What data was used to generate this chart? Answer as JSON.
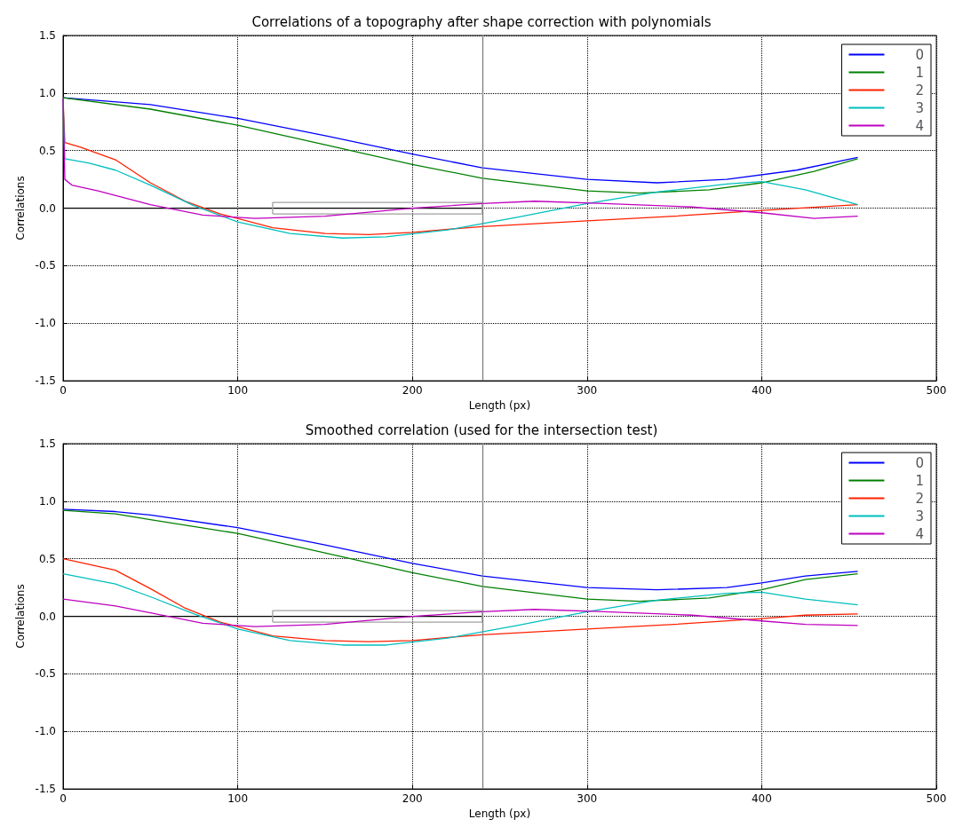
{
  "chart_data": [
    {
      "type": "line",
      "title": "Correlations of a topography after shape correction with polynomials",
      "xlabel": "Length (px)",
      "ylabel": "Correlations",
      "xlim": [
        0,
        500
      ],
      "xticks": [
        0,
        100,
        200,
        300,
        400,
        500
      ],
      "ylim": [
        -1.5,
        1.5
      ],
      "yticks": [
        {
          "value": -1.5,
          "label": "-1.5"
        },
        {
          "value": -1,
          "label": "-1.0"
        },
        {
          "value": -0.5,
          "label": "-0.5"
        },
        {
          "value": 0,
          "label": "0.0"
        },
        {
          "value": 0.5,
          "label": "0.5"
        },
        {
          "value": 1,
          "label": "1.0"
        },
        {
          "value": 1.5,
          "label": "1.5"
        }
      ],
      "grid": true,
      "legend": "top right",
      "marker": "none",
      "line_style": "solid",
      "ref_lines": [
        {
          "axis": "x",
          "value": 240,
          "color": "#808080"
        }
      ],
      "series": [
        {
          "name": "0",
          "color": "#0000ff",
          "x": [
            0,
            50,
            100,
            150,
            200,
            240,
            300,
            340,
            380,
            420,
            455
          ],
          "values": [
            0.96,
            0.9,
            0.78,
            0.63,
            0.47,
            0.35,
            0.25,
            0.22,
            0.25,
            0.33,
            0.44
          ]
        },
        {
          "name": "1",
          "color": "#008000",
          "x": [
            0,
            50,
            100,
            150,
            200,
            240,
            300,
            330,
            370,
            400,
            430,
            455
          ],
          "values": [
            0.96,
            0.86,
            0.72,
            0.55,
            0.38,
            0.26,
            0.15,
            0.13,
            0.16,
            0.22,
            0.32,
            0.43
          ]
        },
        {
          "name": "2",
          "color": "#ff2000",
          "x": [
            0,
            1,
            10,
            30,
            50,
            70,
            90,
            120,
            150,
            175,
            200,
            240,
            300,
            350,
            400,
            455
          ],
          "values": [
            0.95,
            0.57,
            0.53,
            0.42,
            0.22,
            0.06,
            -0.05,
            -0.17,
            -0.22,
            -0.23,
            -0.21,
            -0.16,
            -0.11,
            -0.07,
            -0.02,
            0.03
          ]
        },
        {
          "name": "3",
          "color": "#00bfbf",
          "x": [
            0,
            1,
            15,
            30,
            50,
            75,
            100,
            130,
            160,
            185,
            220,
            260,
            300,
            340,
            380,
            400,
            425,
            455
          ],
          "values": [
            0.95,
            0.43,
            0.39,
            0.33,
            0.2,
            0.02,
            -0.12,
            -0.22,
            -0.26,
            -0.25,
            -0.19,
            -0.08,
            0.04,
            0.14,
            0.21,
            0.23,
            0.16,
            0.03
          ]
        },
        {
          "name": "4",
          "color": "#bf00bf",
          "x": [
            0,
            1,
            5,
            20,
            50,
            80,
            110,
            150,
            200,
            240,
            270,
            310,
            360,
            400,
            430,
            455
          ],
          "values": [
            0.95,
            0.25,
            0.2,
            0.15,
            0.03,
            -0.06,
            -0.09,
            -0.07,
            0,
            0.04,
            0.06,
            0.04,
            0.01,
            -0.04,
            -0.09,
            -0.07
          ]
        },
        {
          "color": "#000000",
          "x": [
            0,
            240
          ],
          "values": [
            0,
            0
          ]
        },
        {
          "color": "#a0a0a0",
          "x": [
            120,
            240
          ],
          "values": [
            0.05,
            0.05
          ]
        },
        {
          "color": "#a0a0a0",
          "x": [
            120,
            240
          ],
          "values": [
            -0.05,
            -0.05
          ]
        },
        {
          "color": "#a0a0a0",
          "x": [
            120,
            120
          ],
          "values": [
            -0.05,
            0.05
          ]
        },
        {
          "color": "#a0a0a0",
          "x": [
            240,
            240
          ],
          "values": [
            -0.05,
            0.05
          ]
        }
      ]
    },
    {
      "type": "line",
      "title": "Smoothed correlation (used for the intersection test)",
      "xlabel": "Length (px)",
      "ylabel": "Correlations",
      "xlim": [
        0,
        500
      ],
      "xticks": [
        0,
        100,
        200,
        300,
        400,
        500
      ],
      "ylim": [
        -1.5,
        1.5
      ],
      "yticks": [
        {
          "value": -1.5,
          "label": "-1.5"
        },
        {
          "value": -1,
          "label": "-1.0"
        },
        {
          "value": -0.5,
          "label": "-0.5"
        },
        {
          "value": 0,
          "label": "0.0"
        },
        {
          "value": 0.5,
          "label": "0.5"
        },
        {
          "value": 1,
          "label": "1.0"
        },
        {
          "value": 1.5,
          "label": "1.5"
        }
      ],
      "grid": true,
      "legend": "top right",
      "marker": "none",
      "line_style": "solid",
      "ref_lines": [
        {
          "axis": "x",
          "value": 240,
          "color": "#808080"
        }
      ],
      "series": [
        {
          "name": "0",
          "color": "#0000ff",
          "x": [
            0,
            30,
            50,
            100,
            150,
            200,
            240,
            300,
            340,
            380,
            400,
            425,
            455
          ],
          "values": [
            0.93,
            0.91,
            0.88,
            0.77,
            0.62,
            0.46,
            0.35,
            0.25,
            0.23,
            0.25,
            0.29,
            0.35,
            0.39
          ]
        },
        {
          "name": "1",
          "color": "#008000",
          "x": [
            0,
            30,
            50,
            100,
            150,
            200,
            240,
            300,
            330,
            370,
            400,
            425,
            455
          ],
          "values": [
            0.92,
            0.89,
            0.84,
            0.72,
            0.55,
            0.38,
            0.26,
            0.15,
            0.13,
            0.16,
            0.23,
            0.32,
            0.37
          ]
        },
        {
          "name": "2",
          "color": "#ff2000",
          "x": [
            0,
            30,
            50,
            70,
            90,
            120,
            150,
            175,
            200,
            240,
            300,
            350,
            400,
            425,
            455
          ],
          "values": [
            0.5,
            0.4,
            0.24,
            0.07,
            -0.05,
            -0.17,
            -0.21,
            -0.22,
            -0.21,
            -0.16,
            -0.11,
            -0.07,
            -0.02,
            0.01,
            0.02
          ]
        },
        {
          "name": "3",
          "color": "#00bfbf",
          "x": [
            0,
            30,
            50,
            75,
            100,
            130,
            160,
            185,
            220,
            260,
            300,
            340,
            380,
            400,
            425,
            455
          ],
          "values": [
            0.37,
            0.28,
            0.17,
            0.02,
            -0.11,
            -0.21,
            -0.25,
            -0.25,
            -0.19,
            -0.08,
            0.04,
            0.14,
            0.2,
            0.21,
            0.15,
            0.1
          ]
        },
        {
          "name": "4",
          "color": "#bf00bf",
          "x": [
            0,
            30,
            50,
            80,
            110,
            150,
            200,
            240,
            270,
            310,
            360,
            400,
            425,
            455
          ],
          "values": [
            0.15,
            0.09,
            0.03,
            -0.06,
            -0.09,
            -0.07,
            0,
            0.04,
            0.06,
            0.04,
            0.01,
            -0.04,
            -0.07,
            -0.08
          ]
        },
        {
          "color": "#000000",
          "x": [
            0,
            240
          ],
          "values": [
            0,
            0
          ]
        },
        {
          "color": "#a0a0a0",
          "x": [
            120,
            240
          ],
          "values": [
            0.05,
            0.05
          ]
        },
        {
          "color": "#a0a0a0",
          "x": [
            120,
            240
          ],
          "values": [
            -0.05,
            -0.05
          ]
        },
        {
          "color": "#a0a0a0",
          "x": [
            120,
            120
          ],
          "values": [
            -0.05,
            0.05
          ]
        },
        {
          "color": "#a0a0a0",
          "x": [
            240,
            240
          ],
          "values": [
            -0.05,
            0.05
          ]
        }
      ]
    }
  ]
}
